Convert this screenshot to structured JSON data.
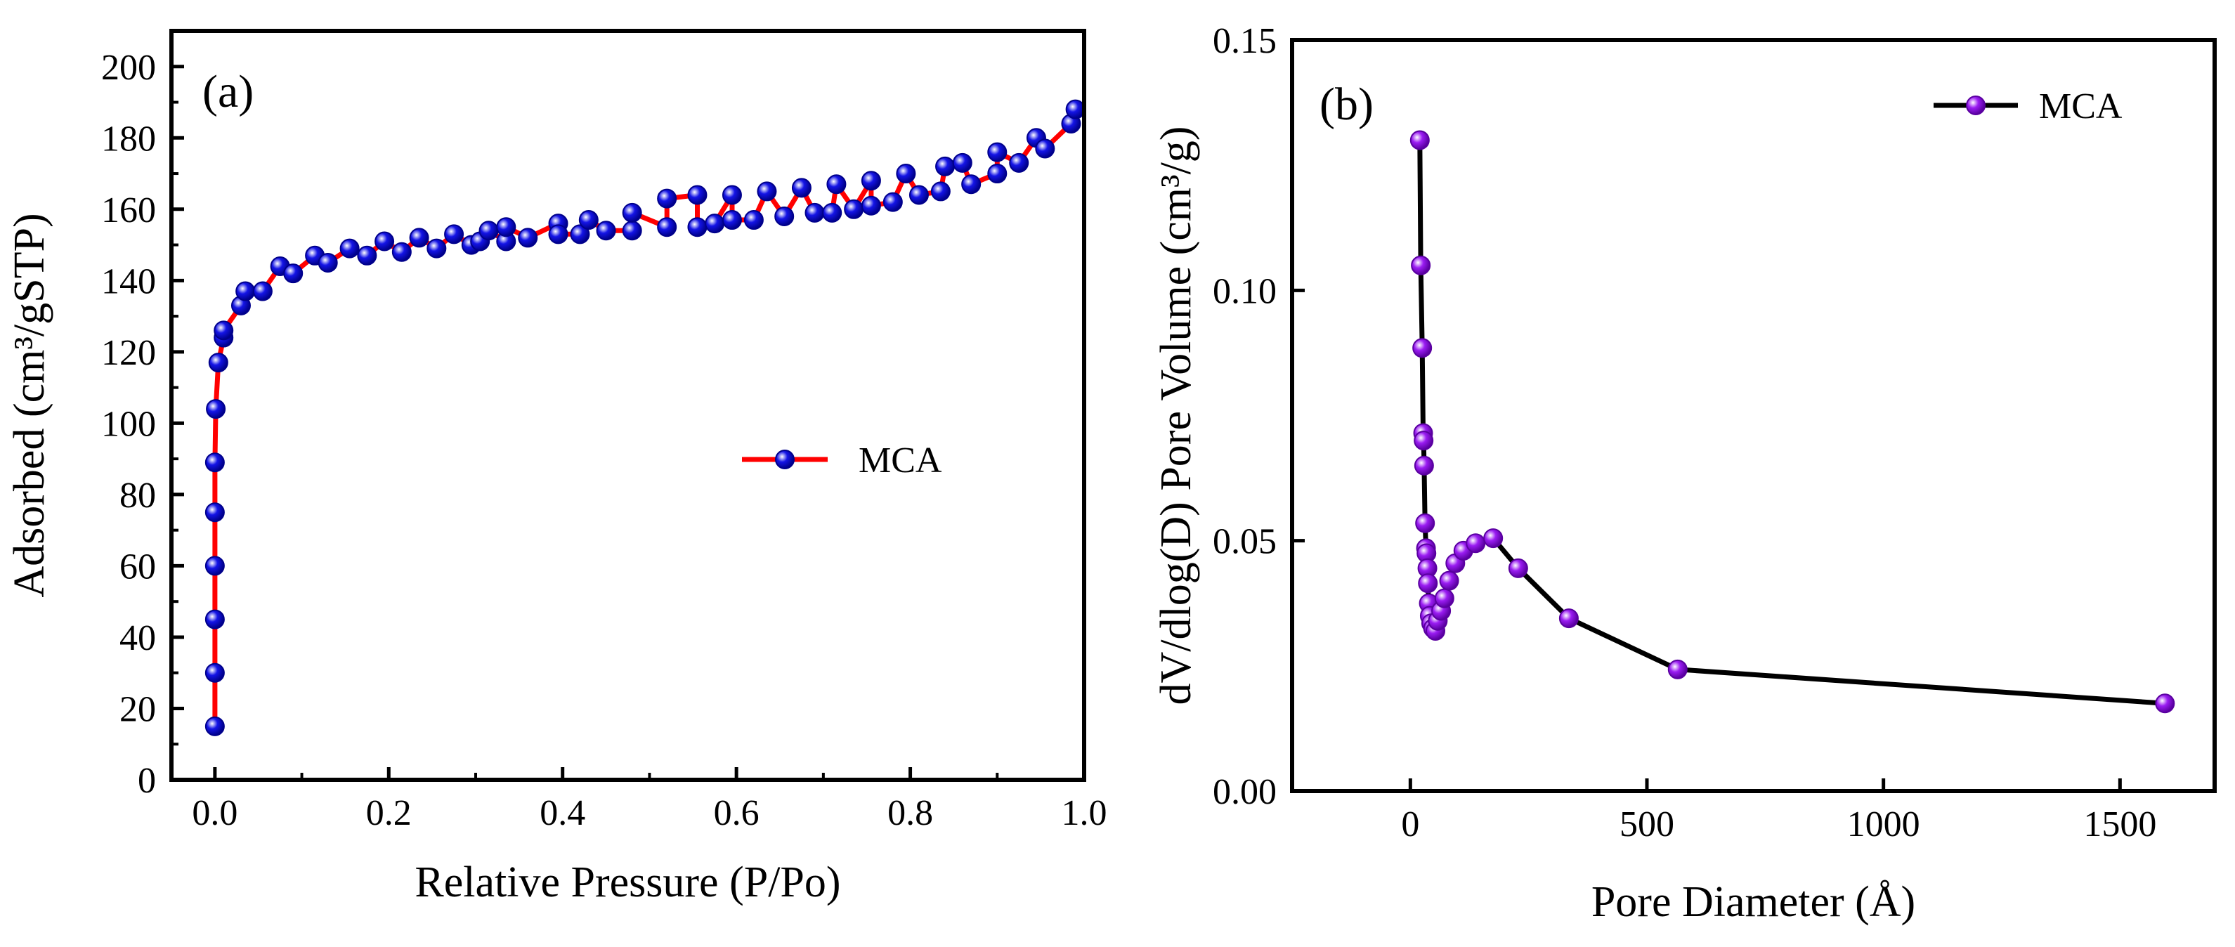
{
  "chart_data": [
    {
      "type": "line",
      "panel_label": "(a)",
      "xlabel": "Relative Pressure (P/Po)",
      "ylabel": "Adsorbed (cm³/gSTP)",
      "xlim": [
        -0.05,
        1.0
      ],
      "ylim": [
        0,
        210
      ],
      "x_ticks": [
        "0.0",
        "0.2",
        "0.4",
        "0.6",
        "0.8",
        "1.0"
      ],
      "x_tick_values": [
        0,
        0.2,
        0.4,
        0.6,
        0.8,
        1.0
      ],
      "y_ticks": [
        "0",
        "20",
        "40",
        "60",
        "80",
        "100",
        "120",
        "140",
        "160",
        "180",
        "200"
      ],
      "y_tick_values": [
        0,
        20,
        40,
        60,
        80,
        100,
        120,
        140,
        160,
        180,
        200
      ],
      "grid": false,
      "legend_placement": "center-right",
      "colors": {
        "line": "#ff0000",
        "marker": "#1414e6",
        "marker_edge": "#00008b"
      },
      "series": [
        {
          "name": "MCA",
          "points": [
            [
              0.0,
              15
            ],
            [
              0.0,
              30
            ],
            [
              0.0,
              45
            ],
            [
              0.0,
              60
            ],
            [
              0.0,
              75
            ],
            [
              0.0,
              89
            ],
            [
              0.001,
              104
            ],
            [
              0.004,
              117
            ],
            [
              0.01,
              124
            ],
            [
              0.01,
              126
            ],
            [
              0.03,
              133
            ],
            [
              0.035,
              137
            ],
            [
              0.055,
              137
            ],
            [
              0.075,
              144
            ],
            [
              0.09,
              142
            ],
            [
              0.115,
              147
            ],
            [
              0.13,
              145
            ],
            [
              0.155,
              149
            ],
            [
              0.175,
              147
            ],
            [
              0.195,
              151
            ],
            [
              0.215,
              148
            ],
            [
              0.235,
              152
            ],
            [
              0.255,
              149
            ],
            [
              0.275,
              153
            ],
            [
              0.295,
              150
            ],
            [
              0.305,
              151
            ],
            [
              0.315,
              154
            ],
            [
              0.335,
              151
            ],
            [
              0.335,
              155
            ],
            [
              0.36,
              152
            ],
            [
              0.395,
              156
            ],
            [
              0.395,
              153
            ],
            [
              0.42,
              153
            ],
            [
              0.43,
              157
            ],
            [
              0.45,
              154
            ],
            [
              0.48,
              154
            ],
            [
              0.48,
              159
            ],
            [
              0.52,
              155
            ],
            [
              0.52,
              163
            ],
            [
              0.555,
              164
            ],
            [
              0.555,
              155
            ],
            [
              0.575,
              156
            ],
            [
              0.595,
              164
            ],
            [
              0.595,
              157
            ],
            [
              0.62,
              157
            ],
            [
              0.635,
              165
            ],
            [
              0.655,
              158
            ],
            [
              0.675,
              166
            ],
            [
              0.69,
              159
            ],
            [
              0.71,
              159
            ],
            [
              0.715,
              167
            ],
            [
              0.735,
              160
            ],
            [
              0.755,
              168
            ],
            [
              0.755,
              161
            ],
            [
              0.78,
              162
            ],
            [
              0.795,
              170
            ],
            [
              0.81,
              164
            ],
            [
              0.835,
              165
            ],
            [
              0.84,
              172
            ],
            [
              0.86,
              173
            ],
            [
              0.87,
              167
            ],
            [
              0.9,
              170
            ],
            [
              0.9,
              176
            ],
            [
              0.925,
              173
            ],
            [
              0.945,
              180
            ],
            [
              0.955,
              177
            ],
            [
              0.985,
              184
            ],
            [
              0.99,
              188
            ]
          ]
        }
      ]
    },
    {
      "type": "line",
      "panel_label": "(b)",
      "xlabel": "Pore Diameter (Å)",
      "ylabel": "dV/dlog(D) Pore Volume (cm³/g)",
      "xlim": [
        -250,
        1700
      ],
      "ylim": [
        0,
        0.15
      ],
      "x_ticks": [
        "0",
        "500",
        "1000",
        "1500"
      ],
      "x_tick_values": [
        0,
        500,
        1000,
        1500
      ],
      "y_ticks": [
        "0.00",
        "0.05",
        "0.10",
        "0.15"
      ],
      "y_tick_values": [
        0,
        0.05,
        0.1,
        0.15
      ],
      "grid": false,
      "legend_placement": "top-right",
      "colors": {
        "line": "#000000",
        "marker": "#9a1cf2",
        "marker_edge": "#5a00a0"
      },
      "series": [
        {
          "name": "MCA",
          "points": [
            [
              20,
              0.13
            ],
            [
              22,
              0.105
            ],
            [
              25,
              0.0885
            ],
            [
              27,
              0.0715
            ],
            [
              28,
              0.07
            ],
            [
              29,
              0.065
            ],
            [
              31,
              0.0535
            ],
            [
              33,
              0.0485
            ],
            [
              34,
              0.0475
            ],
            [
              36,
              0.0445
            ],
            [
              37,
              0.0415
            ],
            [
              39,
              0.0375
            ],
            [
              41,
              0.035
            ],
            [
              44,
              0.0335
            ],
            [
              48,
              0.0325
            ],
            [
              53,
              0.032
            ],
            [
              58,
              0.034
            ],
            [
              65,
              0.036
            ],
            [
              72,
              0.0385
            ],
            [
              82,
              0.042
            ],
            [
              95,
              0.0455
            ],
            [
              112,
              0.048
            ],
            [
              138,
              0.0495
            ],
            [
              175,
              0.0505
            ],
            [
              228,
              0.0445
            ],
            [
              335,
              0.0345
            ],
            [
              565,
              0.0243
            ],
            [
              1595,
              0.0175
            ]
          ]
        }
      ]
    }
  ]
}
